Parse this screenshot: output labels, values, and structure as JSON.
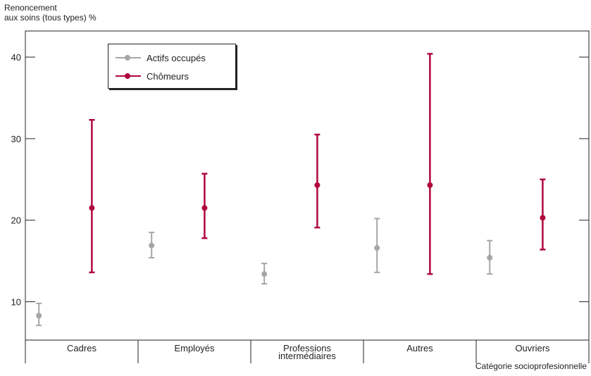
{
  "chart_data": {
    "type": "errorbar",
    "ylabel_line1": "Renoncement",
    "ylabel_line2": "aux soins (tous types) %",
    "xlabel": "Catégorie socioprofesionnelle",
    "categories": [
      "Cadres",
      "Employés",
      "Professions\nintermédiaires",
      "Autres",
      "Ouvriers"
    ],
    "ylim": [
      5.3,
      43.2
    ],
    "yticks": [
      10,
      20,
      30,
      40
    ],
    "grid": false,
    "legend_position": "top-left",
    "series": [
      {
        "name": "Actifs occupés",
        "color": "#a6a6a6",
        "points": [
          {
            "value": 8.3,
            "low": 7.1,
            "high": 9.8
          },
          {
            "value": 16.9,
            "low": 15.4,
            "high": 18.5
          },
          {
            "value": 13.4,
            "low": 12.2,
            "high": 14.7
          },
          {
            "value": 16.6,
            "low": 13.6,
            "high": 20.2
          },
          {
            "value": 15.4,
            "low": 13.4,
            "high": 17.5
          }
        ]
      },
      {
        "name": "Chômeurs",
        "color": "#b0083c",
        "points": [
          {
            "value": 21.5,
            "low": 13.6,
            "high": 32.3
          },
          {
            "value": 21.5,
            "low": 17.8,
            "high": 25.7
          },
          {
            "value": 24.3,
            "low": 19.1,
            "high": 30.5
          },
          {
            "value": 24.3,
            "low": 13.4,
            "high": 40.4
          },
          {
            "value": 20.3,
            "low": 16.4,
            "high": 25.0
          }
        ]
      }
    ]
  }
}
